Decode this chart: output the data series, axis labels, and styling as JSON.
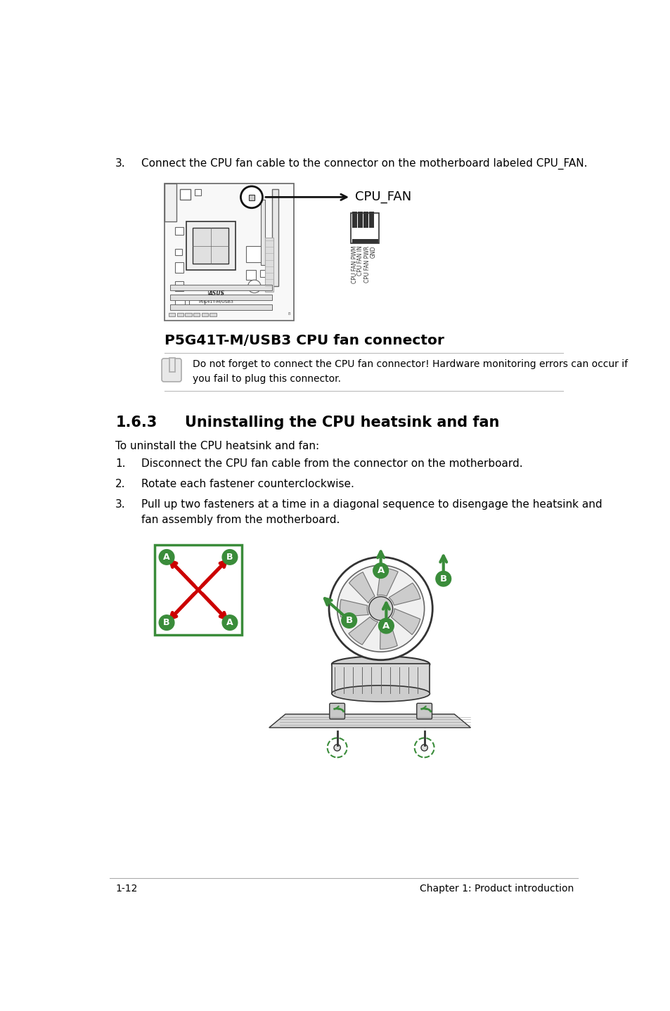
{
  "bg_color": "#ffffff",
  "text_color": "#000000",
  "step3_header": "3.",
  "step3_text": "Connect the CPU fan cable to the connector on the motherboard labeled CPU_FAN.",
  "cpu_fan_label": "CPU_FAN",
  "pin_labels": [
    "CPU FAN PWM",
    "CPU FAN IN",
    "CPU FAN PWR",
    "GND"
  ],
  "caption": "P5G41T-M/USB3 CPU fan connector",
  "note_text": "Do not forget to connect the CPU fan connector! Hardware monitoring errors can occur if\nyou fail to plug this connector.",
  "section_num": "1.6.3",
  "section_title": "Uninstalling the CPU heatsink and fan",
  "intro_text": "To uninstall the CPU heatsink and fan:",
  "step1_num": "1.",
  "step1_text": "Disconnect the CPU fan cable from the connector on the motherboard.",
  "step2_num": "2.",
  "step2_text": "Rotate each fastener counterclockwise.",
  "step3b_num": "3.",
  "step3b_text": "Pull up two fasteners at a time in a diagonal sequence to disengage the heatsink and\nfan assembly from the motherboard.",
  "footer_left": "1-12",
  "footer_right": "Chapter 1: Product introduction",
  "green_color": "#3a8c3a",
  "red_color": "#cc0000",
  "border_green": "#3a8c3a",
  "line_color": "#bbbbbb",
  "dark": "#111111",
  "gray1": "#333333",
  "gray2": "#666666",
  "gray3": "#aaaaaa",
  "gray4": "#cccccc",
  "gray5": "#e8e8e8"
}
